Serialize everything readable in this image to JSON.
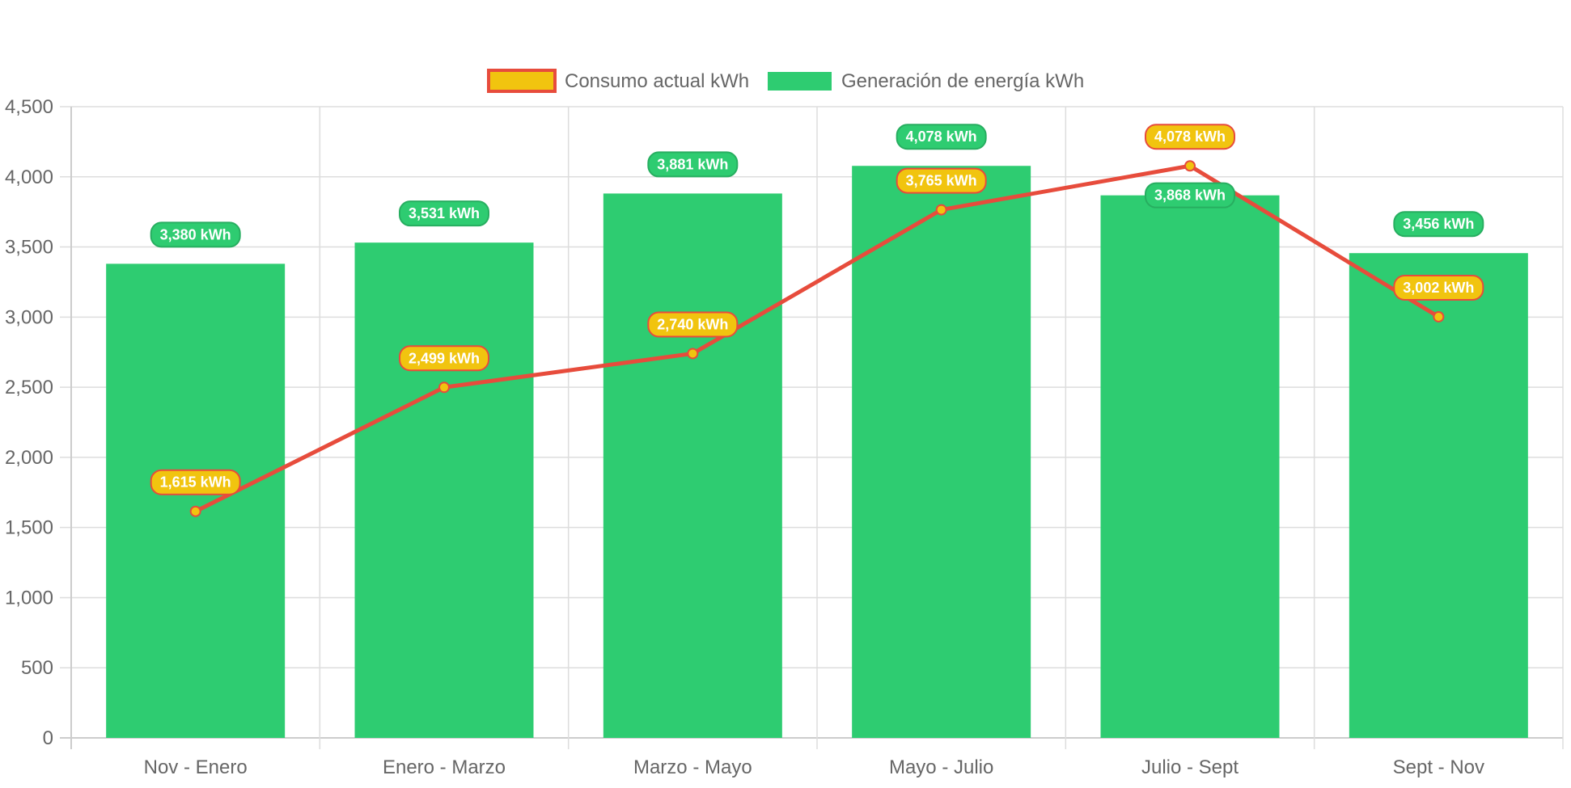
{
  "colors": {
    "bar_fill": "#2ecc71",
    "line_stroke": "#e74c3c",
    "point_fill": "#f1c40f",
    "grid": "#dddddd",
    "axis": "#cccccc",
    "text": "#666666",
    "label_text": "#ffffff"
  },
  "chart_data": {
    "type": "bar",
    "categories": [
      "Nov - Enero",
      "Enero - Marzo",
      "Marzo - Mayo",
      "Mayo - Julio",
      "Julio - Sept",
      "Sept - Nov"
    ],
    "ylim": [
      0,
      4500
    ],
    "yticks": [
      0,
      500,
      1000,
      1500,
      2000,
      2500,
      3000,
      3500,
      4000,
      4500
    ],
    "ytick_labels": [
      "0",
      "500",
      "1,000",
      "1,500",
      "2,000",
      "2,500",
      "3,000",
      "3,500",
      "4,000",
      "4,500"
    ],
    "grid": true,
    "legend_position": "top-center",
    "series": [
      {
        "name": "Consumo actual kWh",
        "type": "line",
        "values": [
          1615,
          2499,
          2740,
          3765,
          4078,
          3002
        ],
        "data_labels": [
          "1,615 kWh",
          "2,499 kWh",
          "2,740 kWh",
          "3,765 kWh",
          "4,078 kWh",
          "3,002 kWh"
        ]
      },
      {
        "name": "Generación de energía kWh",
        "type": "bar",
        "values": [
          3380,
          3531,
          3881,
          4078,
          3868,
          3456
        ],
        "data_labels": [
          "3,380 kWh",
          "3,531 kWh",
          "3,881 kWh",
          "4,078 kWh",
          "3,868 kWh",
          "3,456 kWh"
        ]
      }
    ]
  }
}
